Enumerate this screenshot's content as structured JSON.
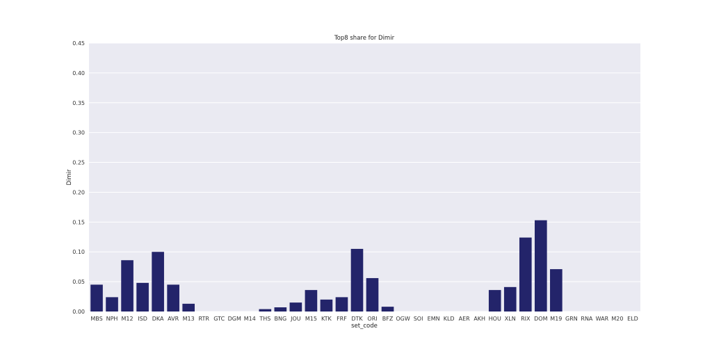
{
  "chart_data": {
    "type": "bar",
    "title": "Top8 share for Dimir",
    "xlabel": "set_code",
    "ylabel": "Dimir",
    "ylim": [
      0,
      0.45
    ],
    "yticks": [
      "0.00",
      "0.05",
      "0.10",
      "0.15",
      "0.20",
      "0.25",
      "0.30",
      "0.35",
      "0.40",
      "0.45"
    ],
    "grid": true,
    "bar_color": "#23246a",
    "background_color": "#eaeaf2",
    "categories": [
      "MBS",
      "NPH",
      "M12",
      "ISD",
      "DKA",
      "AVR",
      "M13",
      "RTR",
      "GTC",
      "DGM",
      "M14",
      "THS",
      "BNG",
      "JOU",
      "M15",
      "KTK",
      "FRF",
      "DTK",
      "ORI",
      "BFZ",
      "OGW",
      "SOI",
      "EMN",
      "KLD",
      "AER",
      "AKH",
      "HOU",
      "XLN",
      "RIX",
      "DOM",
      "M19",
      "GRN",
      "RNA",
      "WAR",
      "M20",
      "ELD"
    ],
    "values": [
      0.045,
      0.024,
      0.086,
      0.048,
      0.1,
      0.045,
      0.013,
      0,
      0,
      0,
      0,
      0.004,
      0.007,
      0.015,
      0.036,
      0.02,
      0.024,
      0.105,
      0.056,
      0.008,
      0,
      0,
      0,
      0,
      0,
      0,
      0.036,
      0.041,
      0.124,
      0.153,
      0.071,
      0,
      0,
      0,
      0,
      0
    ]
  }
}
